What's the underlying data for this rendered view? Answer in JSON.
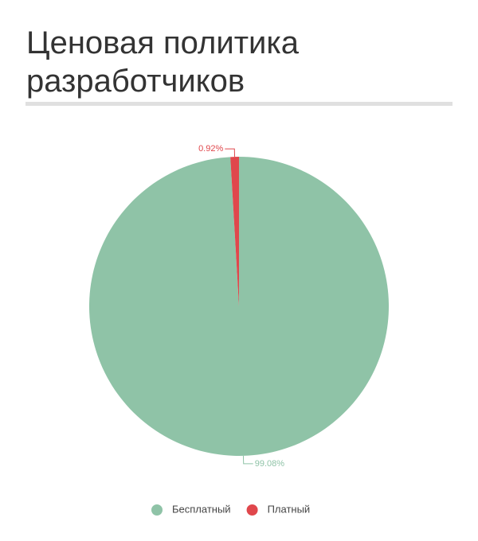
{
  "chart_data": {
    "type": "pie",
    "title": "Ценовая политика разработчиков",
    "categories": [
      "Бесплатный",
      "Платный"
    ],
    "values": [
      99.08,
      0.92
    ],
    "value_labels": [
      "99.08%",
      "0.92%"
    ],
    "colors": [
      "#8fc3a7",
      "#e0474c"
    ]
  }
}
